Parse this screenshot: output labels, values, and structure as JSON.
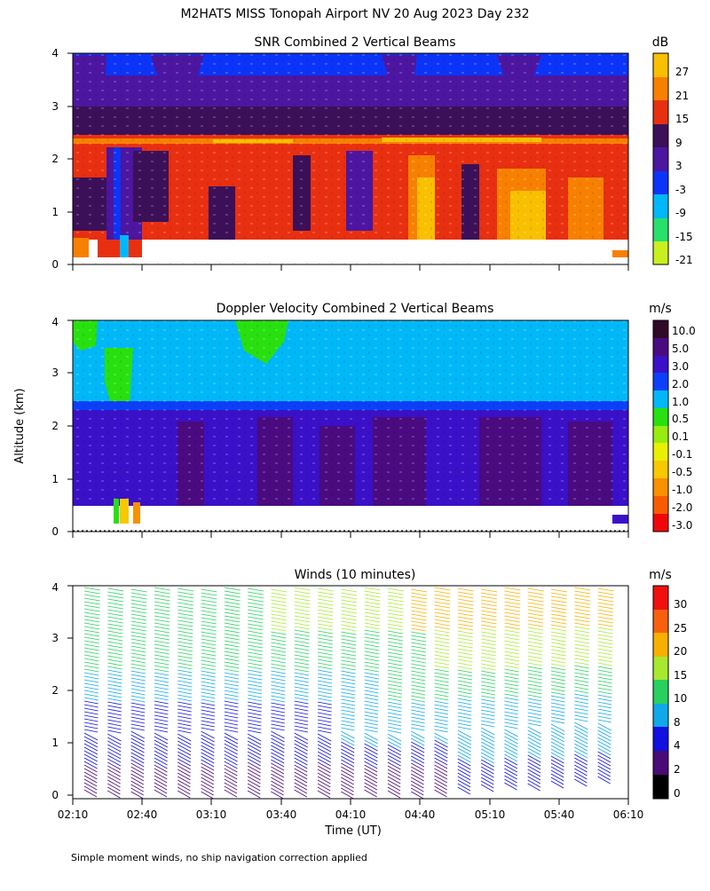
{
  "figure": {
    "title": "M2HATS MISS Tonopah Airport NV  20 Aug 2023 Day 232",
    "y_axis_label": "Altitude (km)",
    "x_axis_label": "Time (UT)",
    "footnote": "Simple moment winds, no ship navigation correction applied"
  },
  "chart_data": [
    {
      "type": "heatmap",
      "title": "SNR Combined 2 Vertical Beams",
      "unit": "dB",
      "ylim": [
        0,
        4
      ],
      "y_ticks": [
        "0",
        "1",
        "2",
        "3",
        "4"
      ],
      "x_range": [
        "02:10",
        "06:10"
      ],
      "colorbar": {
        "labels": [
          "27",
          "21",
          "15",
          "9",
          "3",
          "-3",
          "-9",
          "-15",
          "-21"
        ],
        "colors": [
          "#f8c000",
          "#f88000",
          "#e83010",
          "#3c1058",
          "#4c16a0",
          "#0c34f8",
          "#00b8f8",
          "#28e06c",
          "#c8f020"
        ]
      }
    },
    {
      "type": "heatmap",
      "title": "Doppler Velocity Combined 2 Vertical Beams",
      "unit": "m/s",
      "ylim": [
        0,
        4
      ],
      "y_ticks": [
        "0",
        "1",
        "2",
        "3",
        "4"
      ],
      "x_range": [
        "02:10",
        "06:10"
      ],
      "colorbar": {
        "labels": [
          "10.0",
          "5.0",
          "3.0",
          "2.0",
          "1.0",
          "0.5",
          "0.1",
          "-0.1",
          "-0.5",
          "-1.0",
          "-2.0",
          "-3.0"
        ],
        "colors": [
          "#300828",
          "#4a0a80",
          "#3a10c8",
          "#0c40f8",
          "#00b8f8",
          "#28e010",
          "#98ec10",
          "#e8f000",
          "#f8c800",
          "#f89000",
          "#f85c00",
          "#f00808"
        ]
      }
    },
    {
      "type": "scatter",
      "title": "Winds (10 minutes)",
      "unit": "m/s",
      "ylim": [
        0,
        4
      ],
      "y_ticks": [
        "0",
        "1",
        "2",
        "3",
        "4"
      ],
      "x_ticks": [
        "02:10",
        "02:40",
        "03:10",
        "03:40",
        "04:10",
        "04:40",
        "05:10",
        "05:40",
        "06:10"
      ],
      "colorbar": {
        "labels": [
          "30",
          "25",
          "20",
          "15",
          "10",
          "8",
          "4",
          "2",
          "0"
        ],
        "colors": [
          "#f01010",
          "#f86010",
          "#f8b000",
          "#a8e830",
          "#28d060",
          "#10a8e8",
          "#1010e0",
          "#4a0a78",
          "#000000"
        ]
      }
    }
  ]
}
